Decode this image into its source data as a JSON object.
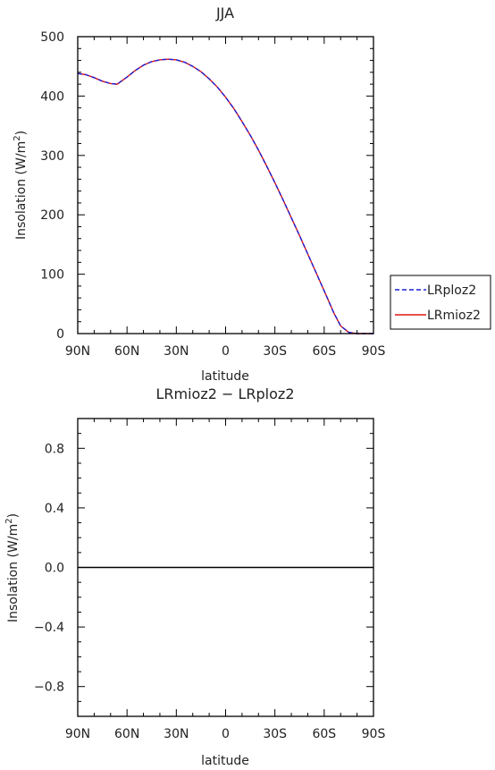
{
  "chart_data": [
    {
      "type": "line",
      "title": "JJA",
      "xlabel": "latitude",
      "ylabel_main": "Insolation  (W/m",
      "ylabel_sup": "2",
      "ylabel_close": ")",
      "xlim": [
        90,
        -90
      ],
      "ylim": [
        0,
        500
      ],
      "xticks": [
        90,
        60,
        30,
        0,
        -30,
        -60,
        -90
      ],
      "xtick_labels": [
        "90N",
        "60N",
        "30N",
        "0",
        "30S",
        "60S",
        "90S"
      ],
      "yticks": [
        0,
        100,
        200,
        300,
        400,
        500
      ],
      "ytick_labels": [
        "0",
        "100",
        "200",
        "300",
        "400",
        "500"
      ],
      "legend_position": "right",
      "series": [
        {
          "name": "LRploz2",
          "color": "#1f1fd6",
          "dash": "dashed",
          "x": [
            90,
            85,
            80,
            75,
            70,
            66,
            60,
            55,
            50,
            45,
            40,
            35,
            30,
            25,
            20,
            15,
            10,
            5,
            0,
            -5,
            -10,
            -15,
            -20,
            -25,
            -30,
            -35,
            -40,
            -45,
            -50,
            -55,
            -60,
            -63,
            -66,
            -70,
            -75,
            -80,
            -85,
            -90
          ],
          "y": [
            438,
            436,
            431,
            425,
            421,
            420,
            432,
            443,
            452,
            458,
            461,
            462,
            461,
            457,
            450,
            441,
            429,
            415,
            398,
            379,
            357,
            334,
            309,
            282,
            254,
            225,
            195,
            165,
            134,
            103,
            72,
            53,
            34,
            13,
            2,
            0,
            0,
            0
          ]
        },
        {
          "name": "LRmioz2",
          "color": "#e01414",
          "dash": "solid",
          "x": [
            90,
            85,
            80,
            75,
            70,
            66,
            60,
            55,
            50,
            45,
            40,
            35,
            30,
            25,
            20,
            15,
            10,
            5,
            0,
            -5,
            -10,
            -15,
            -20,
            -25,
            -30,
            -35,
            -40,
            -45,
            -50,
            -55,
            -60,
            -63,
            -66,
            -70,
            -75,
            -80,
            -85,
            -90
          ],
          "y": [
            438,
            436,
            431,
            425,
            421,
            420,
            432,
            443,
            452,
            458,
            461,
            462,
            461,
            457,
            450,
            441,
            429,
            415,
            398,
            379,
            357,
            334,
            309,
            282,
            254,
            225,
            195,
            165,
            134,
            103,
            72,
            53,
            34,
            13,
            2,
            0,
            0,
            0
          ]
        }
      ]
    },
    {
      "type": "line",
      "title": "LRmioz2  −  LRploz2",
      "xlabel": "latitude",
      "ylabel_main": "Insolation  (W/m",
      "ylabel_sup": "2",
      "ylabel_close": ")",
      "xlim": [
        90,
        -90
      ],
      "ylim": [
        -1,
        1
      ],
      "xticks": [
        90,
        60,
        30,
        0,
        -30,
        -60,
        -90
      ],
      "xtick_labels": [
        "90N",
        "60N",
        "30N",
        "0",
        "30S",
        "60S",
        "90S"
      ],
      "yticks": [
        -0.8,
        -0.4,
        0.0,
        0.4,
        0.8
      ],
      "ytick_labels": [
        "−0.8",
        "−0.4",
        "0.0",
        "0.4",
        "0.8"
      ],
      "series": [
        {
          "color": "#000000",
          "dash": "solid",
          "x": [
            90,
            60,
            30,
            0,
            -30,
            -60,
            -90
          ],
          "y": [
            0,
            0,
            0,
            0,
            0,
            0,
            0
          ]
        }
      ]
    }
  ]
}
